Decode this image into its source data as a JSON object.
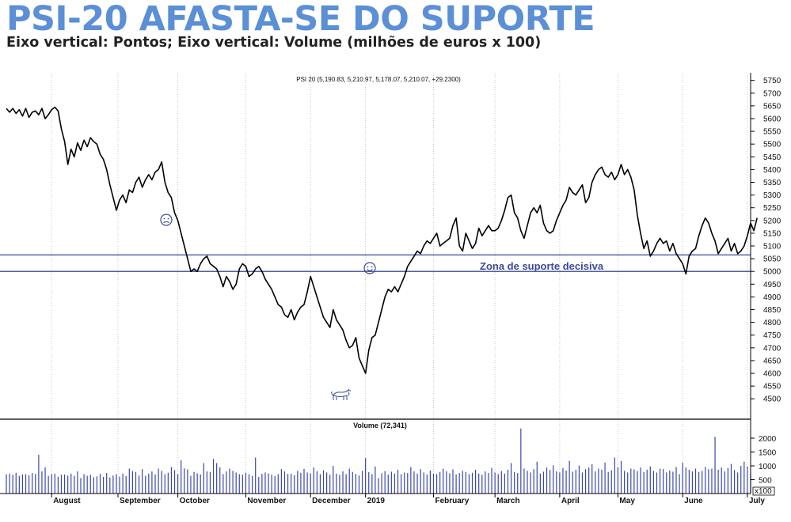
{
  "header": {
    "title": "PSI-20 AFASTA-SE DO SUPORTE",
    "subtitle": "Eixo vertical: Pontos; Eixo vertical: Volume (milhões de euros x 100)"
  },
  "colors": {
    "title": "#5b8fd6",
    "zone": "#3a4a9a",
    "price_line": "#000000",
    "volume_bar": "#3a48a8",
    "grid": "#bbbbbb"
  },
  "chart_data": {
    "type": "line",
    "header_text": "PSI 20 (5,190.83, 5,210.97, 5,178.07, 5,210.07, +29.2300)",
    "ylim": [
      4420,
      5780
    ],
    "yticks": [
      4500,
      4550,
      4600,
      4650,
      4700,
      4750,
      4800,
      4850,
      4900,
      4950,
      5000,
      5050,
      5100,
      5150,
      5200,
      5250,
      5300,
      5350,
      5400,
      5450,
      5500,
      5550,
      5600,
      5650,
      5700,
      5750
    ],
    "x_range": [
      0,
      230
    ],
    "months": [
      {
        "label": "August",
        "x": 14
      },
      {
        "label": "September",
        "x": 34.5
      },
      {
        "label": "October",
        "x": 53
      },
      {
        "label": "November",
        "x": 74
      },
      {
        "label": "December",
        "x": 94
      },
      {
        "label": "2019",
        "x": 111
      },
      {
        "label": "February",
        "x": 132
      },
      {
        "label": "March",
        "x": 151
      },
      {
        "label": "April",
        "x": 171
      },
      {
        "label": "May",
        "x": 189
      },
      {
        "label": "June",
        "x": 209
      },
      {
        "label": "July",
        "x": 229
      }
    ],
    "series": [
      {
        "values": [
          5640,
          5625,
          5640,
          5620,
          5635,
          5610,
          5640,
          5605,
          5625,
          5630,
          5615,
          5640,
          5600,
          5615,
          5635,
          5645,
          5630,
          5560,
          5510,
          5420,
          5480,
          5450,
          5505,
          5475,
          5515,
          5490,
          5525,
          5510,
          5500,
          5460,
          5440,
          5400,
          5340,
          5290,
          5240,
          5280,
          5300,
          5270,
          5320,
          5310,
          5350,
          5370,
          5330,
          5360,
          5380,
          5360,
          5390,
          5400,
          5430,
          5350,
          5310,
          5290,
          5230,
          5200,
          5150,
          5100,
          5050,
          5000,
          5010,
          5000,
          5030,
          5050,
          5060,
          5030,
          5020,
          5010,
          4980,
          4940,
          4980,
          4960,
          4930,
          4950,
          5010,
          5030,
          5020,
          4980,
          4990,
          5010,
          5020,
          5000,
          4970,
          4950,
          4930,
          4900,
          4870,
          4860,
          4830,
          4820,
          4850,
          4810,
          4840,
          4860,
          4870,
          4920,
          4980,
          4940,
          4900,
          4860,
          4820,
          4800,
          4780,
          4850,
          4810,
          4790,
          4770,
          4730,
          4700,
          4710,
          4740,
          4660,
          4630,
          4600,
          4690,
          4740,
          4750,
          4800,
          4850,
          4900,
          4930,
          4920,
          4940,
          4920,
          4950,
          4980,
          5020,
          5040,
          5060,
          5080,
          5070,
          5100,
          5120,
          5110,
          5130,
          5150,
          5100,
          5110,
          5120,
          5130,
          5180,
          5210,
          5100,
          5080,
          5150,
          5120,
          5090,
          5110,
          5170,
          5140,
          5160,
          5180,
          5160,
          5160,
          5170,
          5200,
          5240,
          5290,
          5300,
          5230,
          5210,
          5160,
          5130,
          5180,
          5230,
          5250,
          5230,
          5260,
          5190,
          5160,
          5150,
          5160,
          5200,
          5230,
          5260,
          5280,
          5330,
          5310,
          5300,
          5320,
          5340,
          5270,
          5290,
          5350,
          5380,
          5400,
          5410,
          5380,
          5370,
          5390,
          5360,
          5380,
          5420,
          5380,
          5400,
          5370,
          5320,
          5220,
          5150,
          5090,
          5120,
          5060,
          5080,
          5110,
          5130,
          5110,
          5120,
          5080,
          5110,
          5070,
          5050,
          5030,
          4990,
          5060,
          5080,
          5090,
          5140,
          5180,
          5210,
          5190,
          5150,
          5120,
          5070,
          5090,
          5110,
          5130,
          5080,
          5110,
          5070,
          5080,
          5100,
          5140,
          5190,
          5160,
          5210
        ]
      }
    ],
    "support_zone": {
      "label": "Zona de suporte decisiva",
      "lower": 5000,
      "upper": 5065
    },
    "volume": {
      "header_text": "Volume (72,341)",
      "ylim": [
        0,
        2400
      ],
      "yticks": [
        500,
        1000,
        1500,
        2000
      ],
      "unit_label": "x100",
      "values": [
        700,
        720,
        680,
        750,
        640,
        690,
        700,
        660,
        740,
        710,
        1400,
        800,
        950,
        640,
        700,
        720,
        610,
        680,
        690,
        650,
        720,
        640,
        800,
        560,
        700,
        640,
        680,
        590,
        620,
        710,
        600,
        740,
        580,
        650,
        700,
        610,
        720,
        630,
        900,
        810,
        780,
        650,
        880,
        640,
        720,
        800,
        690,
        900,
        820,
        700,
        750,
        960,
        850,
        700,
        1200,
        910,
        870,
        640,
        780,
        730,
        690,
        1100,
        800,
        780,
        1250,
        1100,
        950,
        700,
        800,
        900,
        820,
        760,
        700,
        680,
        750,
        700,
        640,
        1300,
        600,
        710,
        760,
        720,
        680,
        630,
        700,
        880,
        800,
        710,
        720,
        660,
        820,
        750,
        890,
        760,
        730,
        940,
        810,
        700,
        840,
        760,
        680,
        1000,
        720,
        680,
        800,
        700,
        900,
        780,
        710,
        650,
        820,
        1280,
        770,
        700,
        980,
        560,
        730,
        810,
        680,
        790,
        720,
        860,
        700,
        760,
        740,
        960,
        800,
        720,
        880,
        760,
        690,
        830,
        720,
        700,
        780,
        900,
        810,
        730,
        870,
        690,
        740,
        820,
        780,
        700,
        750,
        860,
        720,
        680,
        800,
        740,
        930,
        760,
        700,
        810,
        720,
        860,
        1100,
        780,
        740,
        2350,
        900,
        820,
        760,
        880,
        1150,
        720,
        790,
        940,
        850,
        1020,
        800,
        760,
        920,
        830,
        1180,
        790,
        860,
        1010,
        760,
        880,
        940,
        1060,
        800,
        900,
        860,
        1120,
        780,
        840,
        1300,
        950,
        1180,
        820,
        760,
        900,
        870,
        810,
        940,
        780,
        860,
        980,
        820,
        760,
        900,
        880,
        760,
        830,
        790,
        960,
        700,
        1110,
        940,
        860,
        800,
        900,
        780,
        820,
        960,
        880,
        900,
        2050,
        860,
        940,
        800,
        920,
        1070,
        850,
        760,
        1000,
        1150,
        980,
        720
      ]
    }
  }
}
